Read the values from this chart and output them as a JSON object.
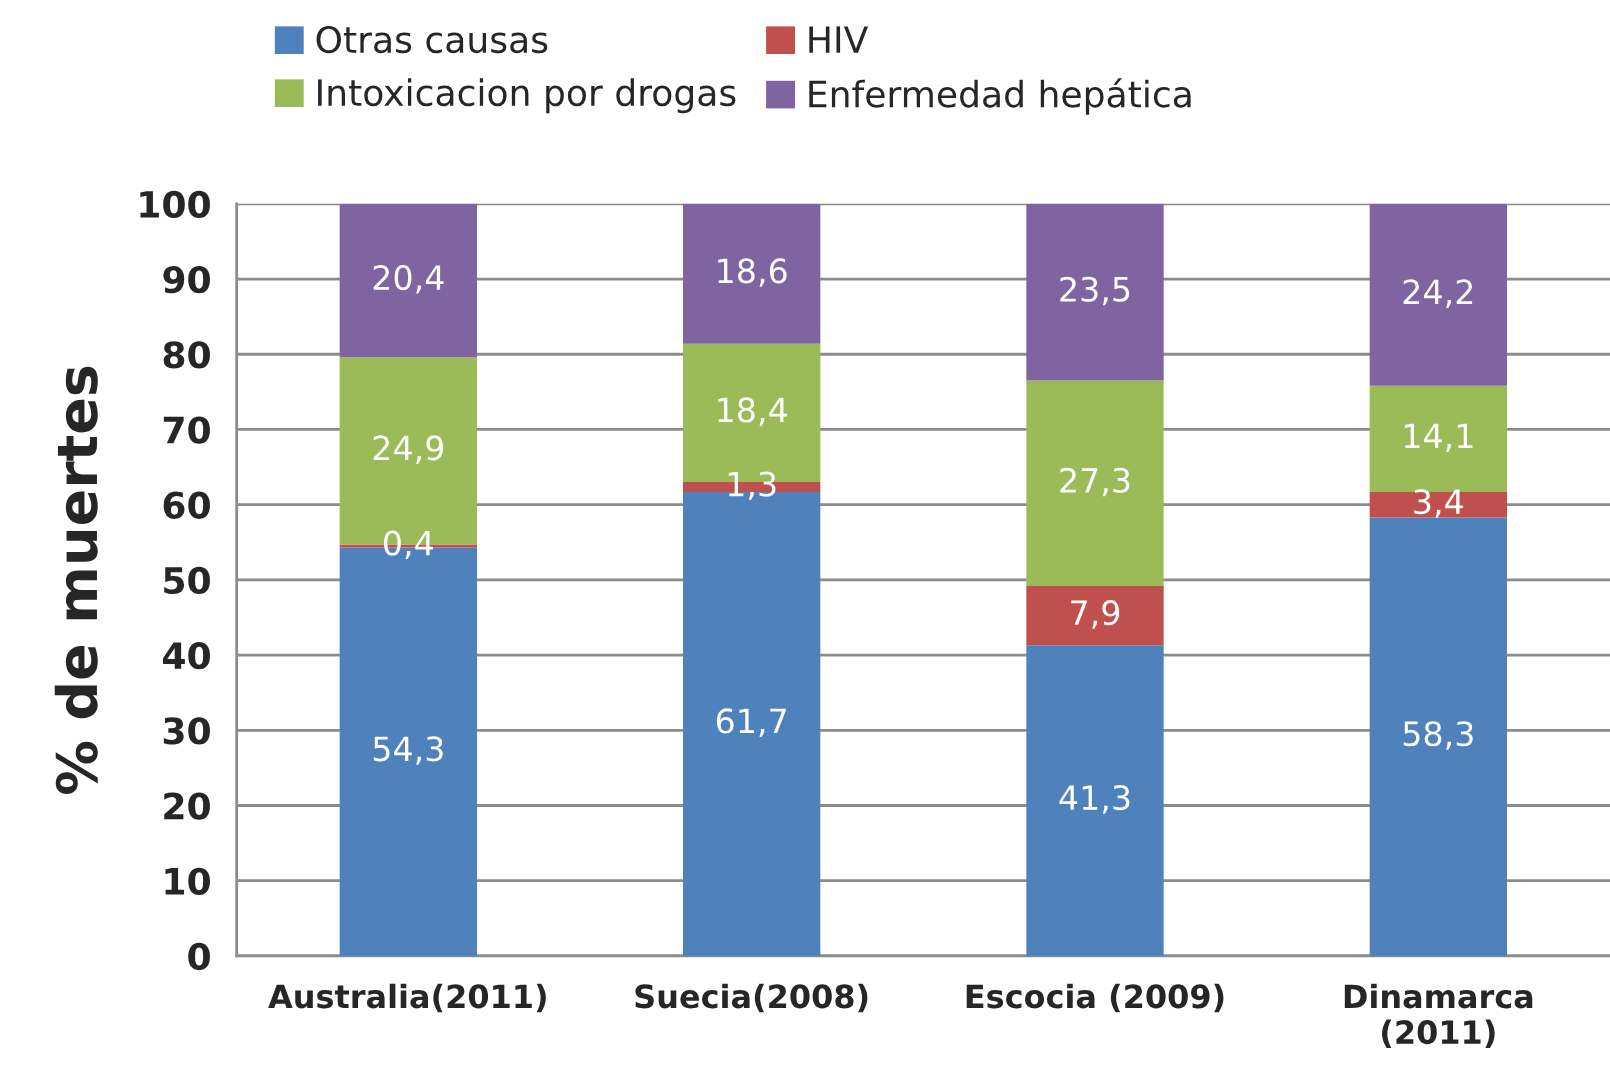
{
  "chart_data": {
    "type": "bar",
    "stacked": true,
    "categories": [
      "Australia(2011)",
      "Suecia(2008)",
      "Escocia (2009)",
      "Dinamarca\n(2011)"
    ],
    "ylabel": "% de muertes",
    "series": [
      {
        "name": "Otras causas",
        "color": "#4f81bd",
        "values": [
          54.3,
          61.7,
          41.3,
          58.3
        ],
        "value_labels": [
          "54,3",
          "61,7",
          "41,3",
          "58,3"
        ]
      },
      {
        "name": "HIV",
        "color": "#c0504d",
        "values": [
          0.4,
          1.3,
          7.9,
          3.4
        ],
        "value_labels": [
          "0,4",
          "1,3",
          "7,9",
          "3,4"
        ]
      },
      {
        "name": "Intoxicacion por drogas",
        "color": "#9bbb59",
        "values": [
          24.9,
          18.4,
          27.3,
          14.1
        ],
        "value_labels": [
          "24,9",
          "18,4",
          "27,3",
          "14,1"
        ]
      },
      {
        "name": "Enfermedad hepática",
        "color": "#8064a2",
        "values": [
          20.4,
          18.6,
          23.5,
          24.2
        ],
        "value_labels": [
          "20,4",
          "18,6",
          "23,5",
          "24,2"
        ]
      }
    ],
    "ylim": [
      0,
      100
    ],
    "yticks": [
      0,
      10,
      20,
      30,
      40,
      50,
      60,
      70,
      80,
      90,
      100
    ],
    "grid": "y",
    "legend": "top"
  }
}
